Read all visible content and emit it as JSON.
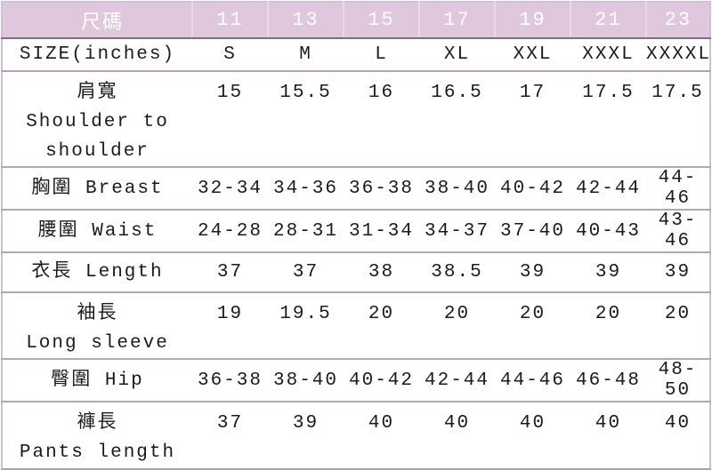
{
  "table": {
    "header": {
      "label": "尺碼",
      "codes": [
        "11",
        "13",
        "15",
        "17",
        "19",
        "21",
        "23"
      ]
    },
    "rows": [
      {
        "label_lines": [
          "SIZE(inches)"
        ],
        "values": [
          "S",
          "M",
          "L",
          "XL",
          "XXL",
          "XXXL",
          "XXXXL"
        ]
      },
      {
        "label_lines": [
          "肩寬",
          "Shoulder to",
          "shoulder"
        ],
        "values": [
          "15",
          "15.5",
          "16",
          "16.5",
          "17",
          "17.5",
          "17.5"
        ]
      },
      {
        "label_lines": [
          "胸圍 Breast"
        ],
        "values": [
          "32-34",
          "34-36",
          "36-38",
          "38-40",
          "40-42",
          "42-44",
          "44-46"
        ]
      },
      {
        "label_lines": [
          "腰圍 Waist"
        ],
        "values": [
          "24-28",
          "28-31",
          "31-34",
          "34-37",
          "37-40",
          "40-43",
          "43-46"
        ]
      },
      {
        "label_lines": [
          "衣長 Length"
        ],
        "values": [
          "37",
          "37",
          "38",
          "38.5",
          "39",
          "39",
          "39"
        ]
      },
      {
        "label_lines": [
          "袖長",
          "Long sleeve"
        ],
        "values": [
          "19",
          "19.5",
          "20",
          "20",
          "20",
          "20",
          "20"
        ]
      },
      {
        "label_lines": [
          "臀圍 Hip"
        ],
        "values": [
          "36-38",
          "38-40",
          "40-42",
          "42-44",
          "44-46",
          "46-48",
          "48-50"
        ]
      },
      {
        "label_lines": [
          "褲長",
          "Pants length"
        ],
        "values": [
          "37",
          "39",
          "40",
          "40",
          "40",
          "40",
          "40"
        ]
      }
    ],
    "colors": {
      "header_background": "#dfc7dd",
      "header_text": "#ffffff",
      "header_underline": "#75737c",
      "row_divider": "#b2a5c2",
      "outer_border": "#cec0d8",
      "body_text": "#1b1b1b"
    }
  }
}
